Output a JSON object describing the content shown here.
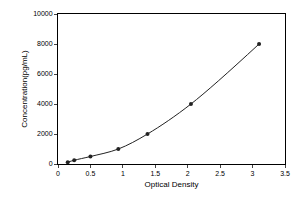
{
  "chart_data": {
    "type": "line",
    "marker": "circle",
    "color": "#222222",
    "x_label": "Optical Density",
    "y_label": "Concentration(pg/mL)",
    "x": [
      0.15,
      0.25,
      0.5,
      0.93,
      1.38,
      2.05,
      3.1
    ],
    "values": [
      125,
      250,
      500,
      1000,
      2000,
      4000,
      8000
    ],
    "xlim": [
      0,
      3.5
    ],
    "xticks": [
      0,
      0.5,
      1,
      1.5,
      2,
      2.5,
      3,
      3.5
    ],
    "ylim": [
      0,
      10000
    ],
    "yticks": [
      0,
      2000,
      4000,
      6000,
      8000,
      10000
    ],
    "grid": false
  }
}
